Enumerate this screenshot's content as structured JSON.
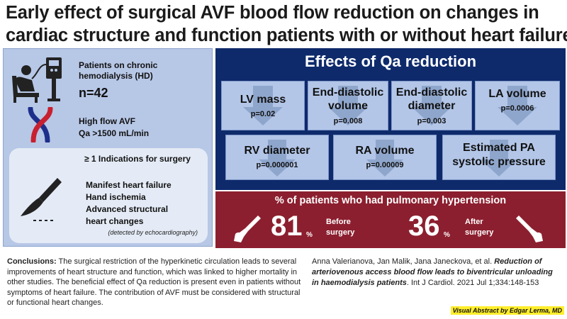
{
  "title": {
    "line1": "Early effect of surgical AVF blood flow reduction on changes in",
    "line2": "cardiac structure and function patients with or without heart failure"
  },
  "left": {
    "patients_line1": "Patients on chronic",
    "patients_line2": "hemodialysis (HD)",
    "n": "n=42",
    "avf_line1": "High flow AVF",
    "avf_line2": "Qa >1500 mL/min",
    "indications_title": "≥ 1 Indications for surgery",
    "indications": [
      "Manifest heart failure",
      "Hand ischemia",
      "Advanced structural",
      "heart changes"
    ],
    "note": "(detected by echocardiography)"
  },
  "effects": {
    "title": "Effects of Qa reduction",
    "boxes": [
      {
        "line1": "LV mass",
        "line2": "",
        "p": "p=0.02"
      },
      {
        "line1": "End-diastolic",
        "line2": "volume",
        "p": "p=0.008"
      },
      {
        "line1": "End-diastolic",
        "line2": "diameter",
        "p": "p=0.003"
      },
      {
        "line1": "LA volume",
        "line2": "",
        "p": "p=0.0006"
      },
      {
        "line1": "RV diameter",
        "line2": "",
        "p": "p=0.000001"
      },
      {
        "line1": "RA volume",
        "line2": "",
        "p": "p=0.00009"
      },
      {
        "line1": "Estimated PA",
        "line2": "systolic pressure",
        "p": ""
      }
    ]
  },
  "ph": {
    "title": "% of patients who had pulmonary hypertension",
    "before_value": "81",
    "before_unit": "%",
    "before_line1": "Before",
    "before_line2": "surgery",
    "after_value": "36",
    "after_unit": "%",
    "after_line1": "After",
    "after_line2": "surgery"
  },
  "conclusions": {
    "label": "Conclusions:",
    "text": " The surgical restriction of the hyperkinetic circulation leads to several improvements of heart structure and function, which was linked to higher mortality in other studies. The beneficial effect of Qa reduction is present even in patients without symptoms of heart failure. The contribution of AVF must be considered with structural or functional heart changes."
  },
  "citation": {
    "authors": "Anna Valerianova, Jan Malik, Jana Janeckova, et al. ",
    "article_title": "Reduction of arteriovenous access blood flow leads to biventricular unloading in haemodialysis patients",
    "source": ". Int J Cardiol. 2021 Jul 1;334:148-153"
  },
  "credit": "Visual Abstract by Edgar Lerma, MD",
  "colors": {
    "left_panel": "#b7c7e6",
    "effects_panel": "#0e2a6b",
    "box": "#b3c6e8",
    "ph_panel": "#8c1f2f",
    "credit": "#ffee2b"
  }
}
